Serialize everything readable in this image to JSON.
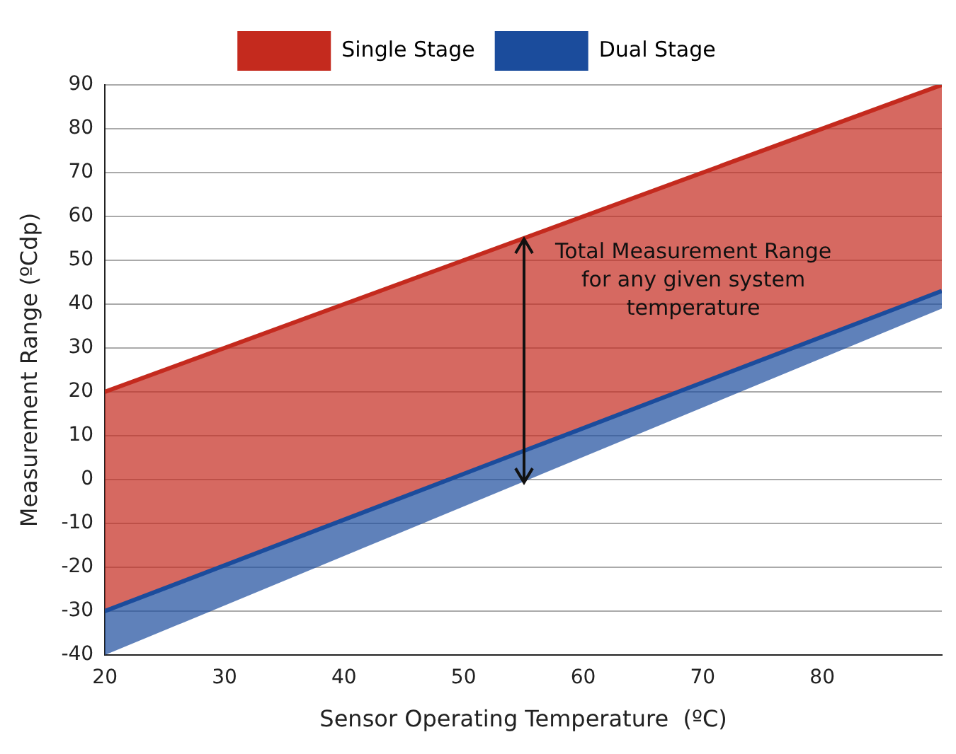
{
  "chart_data": {
    "type": "line",
    "xlabel": "Sensor Operating Temperature  (ºC)",
    "ylabel": "Measurement Range (ºCdp)",
    "x": [
      20,
      90
    ],
    "series": [
      {
        "name": "Single Stage",
        "color": "#c42a1e",
        "values": [
          20,
          90
        ],
        "lower": [
          -30,
          43
        ],
        "upper": [
          20,
          90
        ]
      },
      {
        "name": "Dual Stage",
        "color": "#1b4c9c",
        "values": [
          -30,
          43
        ],
        "lower": [
          -40,
          39
        ],
        "upper": [
          -30,
          43
        ]
      }
    ],
    "xlim": [
      20,
      90
    ],
    "xticks": [
      20,
      30,
      40,
      50,
      60,
      70,
      80
    ],
    "ylim": [
      -40,
      90
    ],
    "yticks": [
      -40,
      -30,
      -20,
      -10,
      0,
      10,
      20,
      30,
      40,
      50,
      60,
      70,
      80,
      90
    ],
    "grid": "y",
    "legend": "top",
    "annotations": [
      {
        "text": "Total Measurement Range for any given system temperature",
        "x": 55,
        "y": 55
      }
    ]
  }
}
